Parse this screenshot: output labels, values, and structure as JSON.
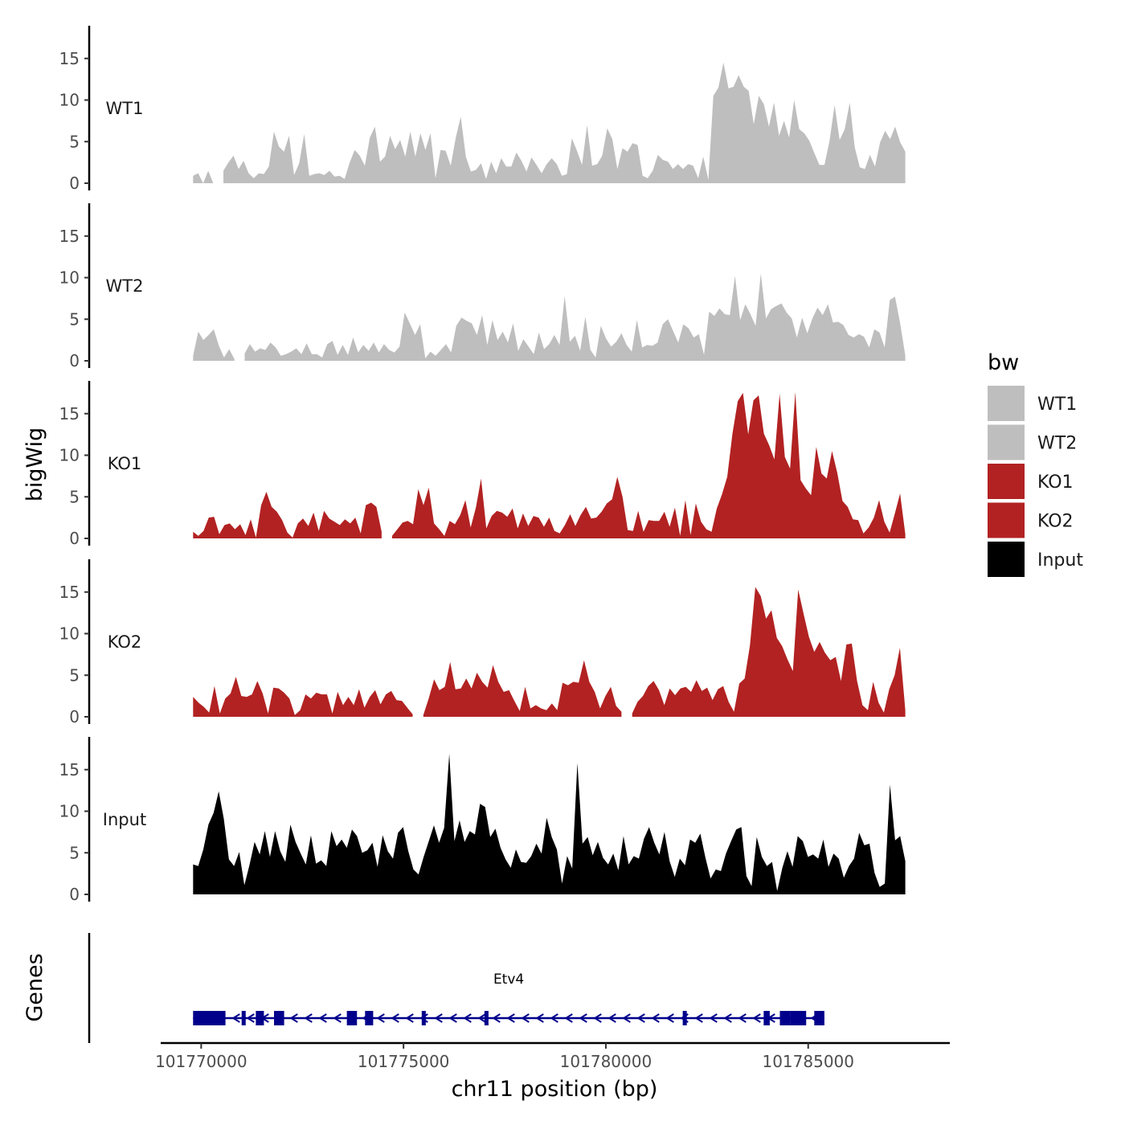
{
  "chart_data": {
    "type": "area",
    "chromosome": "chr11",
    "xlabel": "chr11 position (bp)",
    "ylabel": "bigWig",
    "genes_label": "Genes",
    "xlim": [
      101769000,
      101788500
    ],
    "ylim": [
      0,
      19
    ],
    "region": [
      101769800,
      101787400
    ],
    "x_ticks": [
      101770000,
      101775000,
      101780000,
      101785000
    ],
    "x_tick_labels": [
      "101770000",
      "101775000",
      "101780000",
      "101785000"
    ],
    "y_ticks": [
      0,
      5,
      10,
      15
    ],
    "y_tick_labels": [
      "0",
      "5",
      "10",
      "15"
    ],
    "legend": {
      "title": "bw",
      "entries": [
        {
          "name": "WT1",
          "color": "#bebebe"
        },
        {
          "name": "WT2",
          "color": "#bebebe"
        },
        {
          "name": "KO1",
          "color": "#b22222"
        },
        {
          "name": "KO2",
          "color": "#b22222"
        },
        {
          "name": "Input",
          "color": "#000000"
        }
      ]
    },
    "series": [
      {
        "name": "WT1",
        "color": "#bebebe",
        "values": [
          0.9,
          1.2,
          0,
          1.5,
          0,
          null,
          1.5,
          2.5,
          3.3,
          1.7,
          2.7,
          1.2,
          0.6,
          1.2,
          1.1,
          2.0,
          6.2,
          4.4,
          3.8,
          5.7,
          1.0,
          2.4,
          5.9,
          0.9,
          1.1,
          1.2,
          1.0,
          1.5,
          0.8,
          0.9,
          0.5,
          2.5,
          4.0,
          3.3,
          2.1,
          5.5,
          6.8,
          2.6,
          3.2,
          5.7,
          4.1,
          5.2,
          3.2,
          6.2,
          3.2,
          6.0,
          4.0,
          6.0,
          0.6,
          4.0,
          3.9,
          2.1,
          5.5,
          8.0,
          3.2,
          1.4,
          1.6,
          2.4,
          0.5,
          2.6,
          1.2,
          3.0,
          2.0,
          2.0,
          3.7,
          2.7,
          1.4,
          3.1,
          2.2,
          1.2,
          2.3,
          3.0,
          2.3,
          0.9,
          1.1,
          5.4,
          3.9,
          2.2,
          7.0,
          2.1,
          2.3,
          3.3,
          6.6,
          5.3,
          1.7,
          4.2,
          3.8,
          4.8,
          4.6,
          0.9,
          0.6,
          1.5,
          3.4,
          2.8,
          2.6,
          1.7,
          2.3,
          1.7,
          2.3,
          2.1,
          0.6,
          3.2,
          0.4,
          10.5,
          11.5,
          14.5,
          11.4,
          11.6,
          13.0,
          11.6,
          11.1,
          7.1,
          10.5,
          9.5,
          6.8,
          9.7,
          5.7,
          7.5,
          5.5,
          10.0,
          6.5,
          6.0,
          5.1,
          3.6,
          2.2,
          2.2,
          5.1,
          9.4,
          5.2,
          6.5,
          9.7,
          4.3,
          1.9,
          1.7,
          3.4,
          2.0,
          4.9,
          6.3,
          5.3,
          6.8,
          4.9,
          3.8
        ]
      },
      {
        "name": "WT2",
        "color": "#bebebe",
        "values": [
          0.6,
          3.5,
          2.5,
          3.1,
          3.8,
          1.8,
          0.4,
          1.4,
          0.2,
          null,
          0.9,
          2.0,
          1.1,
          1.5,
          1.3,
          2.2,
          1.6,
          0.6,
          0.8,
          1.1,
          1.5,
          0.8,
          2.1,
          0.8,
          0.8,
          0.4,
          2.0,
          2.4,
          0.7,
          1.9,
          0.7,
          2.8,
          1.0,
          1.9,
          1.2,
          2.2,
          1.0,
          2.0,
          1.3,
          1.0,
          1.7,
          5.8,
          4.5,
          3.1,
          4.4,
          0.3,
          1.1,
          0.6,
          1.3,
          2.0,
          1.0,
          4.2,
          5.2,
          4.8,
          4.5,
          3.1,
          5.5,
          1.9,
          4.9,
          2.5,
          3.5,
          2.2,
          4.5,
          1.2,
          2.6,
          1.7,
          0.8,
          3.4,
          1.4,
          2.0,
          3.1,
          1.9,
          7.8,
          2.3,
          3.0,
          1.2,
          5.3,
          1.3,
          0.4,
          4.2,
          2.7,
          1.7,
          2.3,
          3.3,
          1.9,
          1.1,
          4.9,
          1.6,
          1.9,
          1.8,
          2.2,
          4.4,
          5.0,
          3.6,
          2.2,
          4.4,
          3.9,
          2.8,
          3.2,
          0.7,
          5.9,
          5.4,
          6.3,
          5.6,
          5.5,
          10.2,
          4.9,
          6.8,
          5.6,
          4.2,
          10.5,
          5.1,
          6.2,
          6.6,
          6.9,
          5.8,
          5.1,
          2.8,
          5.2,
          3.3,
          5.1,
          6.4,
          5.5,
          6.8,
          4.6,
          4.7,
          4.3,
          3.1,
          2.8,
          3.2,
          2.9,
          1.6,
          3.8,
          3.4,
          1.6,
          7.3,
          7.7,
          4.5,
          0.6
        ]
      },
      {
        "name": "KO1",
        "color": "#b22222",
        "values": [
          0.8,
          0.3,
          0.9,
          2.5,
          2.6,
          0.5,
          1.6,
          1.8,
          1.1,
          1.7,
          0.4,
          2.3,
          0.1,
          4.0,
          5.6,
          3.8,
          3.2,
          2.2,
          0.7,
          0.1,
          1.8,
          2.4,
          1.5,
          3.1,
          0.9,
          3.3,
          2.4,
          2.0,
          1.6,
          2.3,
          1.8,
          2.5,
          0.6,
          4.0,
          4.3,
          3.8,
          0.8,
          null,
          0.3,
          1.1,
          1.9,
          2.1,
          1.7,
          5.9,
          4.0,
          6.1,
          1.8,
          1.1,
          0.3,
          2.1,
          1.7,
          2.8,
          4.6,
          1.3,
          3.7,
          7.2,
          1.2,
          2.7,
          3.3,
          3.1,
          2.6,
          3.6,
          1.2,
          3.0,
          1.5,
          2.7,
          2.5,
          1.4,
          2.5,
          0.9,
          0.6,
          1.6,
          2.9,
          1.5,
          2.8,
          3.8,
          2.4,
          2.5,
          3.2,
          4.2,
          4.7,
          7.4,
          5.0,
          1.0,
          0.9,
          3.3,
          0.8,
          2.2,
          2.1,
          2.1,
          3.2,
          1.4,
          3.7,
          0.3,
          4.6,
          0.4,
          4.2,
          2.0,
          1.1,
          0.8,
          3.6,
          5.3,
          7.4,
          12.6,
          16.5,
          17.5,
          12.5,
          16.6,
          17.2,
          12.6,
          11.2,
          9.5,
          17.4,
          9.8,
          8.4,
          17.6,
          7.0,
          6.0,
          5.2,
          11.0,
          7.8,
          7.2,
          10.5,
          7.9,
          4.5,
          3.8,
          2.3,
          2.2,
          0.6,
          1.3,
          2.5,
          4.6,
          2.0,
          0.7,
          3.0,
          5.4,
          0.5
        ]
      },
      {
        "name": "KO2",
        "color": "#b22222",
        "values": [
          2.4,
          1.7,
          1.2,
          0.5,
          3.7,
          0.4,
          2.2,
          2.8,
          4.8,
          2.5,
          2.4,
          2.7,
          4.3,
          2.8,
          0.4,
          3.5,
          3.4,
          2.9,
          2.2,
          0.2,
          0.8,
          2.7,
          2.2,
          2.9,
          2.7,
          2.7,
          0.4,
          3.0,
          1.4,
          2.4,
          1.4,
          3.3,
          1.1,
          2.4,
          3.2,
          1.5,
          2.7,
          3.1,
          2.0,
          1.9,
          1.1,
          0.3,
          null,
          0.2,
          2.2,
          4.5,
          3.2,
          3.6,
          6.6,
          3.3,
          3.4,
          4.6,
          3.4,
          5.3,
          4.2,
          3.5,
          6.2,
          4.2,
          3.0,
          3.2,
          1.9,
          0.7,
          3.6,
          1.0,
          1.4,
          1.0,
          0.8,
          1.6,
          0.8,
          4.1,
          3.8,
          4.2,
          4.1,
          6.8,
          4.2,
          3.0,
          1.0,
          2.5,
          3.6,
          1.3,
          0.6,
          null,
          0.4,
          1.8,
          2.5,
          3.7,
          4.3,
          3.2,
          1.4,
          3.4,
          2.6,
          3.4,
          3.6,
          3.0,
          4.4,
          3.1,
          3.5,
          2.0,
          3.3,
          3.7,
          1.8,
          0.6,
          4.0,
          4.6,
          8.6,
          15.6,
          14.5,
          11.8,
          12.8,
          9.5,
          8.5,
          6.9,
          5.5,
          15.3,
          12.4,
          9.6,
          7.8,
          9.0,
          7.7,
          6.8,
          7.2,
          4.3,
          8.7,
          8.8,
          4.3,
          1.4,
          0.8,
          4.2,
          1.7,
          0.5,
          3.3,
          5.0,
          8.3,
          0.8
        ]
      },
      {
        "name": "Input",
        "color": "#000000",
        "values": [
          3.6,
          3.4,
          5.4,
          8.4,
          9.8,
          12.4,
          9.1,
          4.2,
          3.4,
          5.1,
          1.1,
          3.5,
          6.3,
          4.8,
          7.6,
          4.5,
          7.6,
          5.2,
          3.9,
          8.4,
          6.3,
          4.9,
          3.6,
          7.1,
          3.7,
          4.1,
          3.4,
          7.6,
          5.8,
          6.6,
          5.6,
          7.8,
          7.0,
          5.0,
          5.3,
          6.2,
          3.3,
          7.1,
          5.2,
          4.3,
          7.4,
          8.1,
          5.2,
          3.0,
          2.4,
          4.5,
          6.4,
          8.3,
          6.2,
          8.0,
          16.9,
          6.4,
          8.9,
          6.3,
          7.6,
          7.2,
          10.9,
          10.5,
          6.9,
          7.9,
          5.6,
          4.2,
          3.2,
          5.4,
          3.9,
          3.8,
          4.6,
          6.1,
          4.9,
          9.2,
          6.9,
          5.4,
          1.3,
          4.6,
          3.1,
          15.8,
          6.1,
          6.9,
          4.7,
          6.3,
          4.4,
          3.6,
          4.9,
          2.9,
          7.0,
          3.6,
          4.6,
          4.3,
          6.7,
          8.1,
          6.2,
          4.8,
          7.5,
          4.0,
          2.1,
          4.3,
          3.5,
          6.6,
          6.2,
          7.3,
          4.4,
          1.9,
          3.0,
          2.8,
          4.9,
          6.4,
          7.8,
          8.1,
          2.2,
          1.0,
          6.9,
          4.5,
          3.4,
          3.9,
          0.4,
          3.2,
          5.2,
          3.3,
          7.0,
          6.4,
          4.5,
          4.8,
          4.3,
          6.6,
          3.3,
          4.9,
          4.3,
          2.0,
          3.4,
          4.3,
          7.4,
          5.9,
          6.1,
          2.6,
          0.9,
          1.3,
          13.2,
          6.5,
          7.0,
          4.0
        ]
      }
    ],
    "genes": [
      {
        "name": "Etv4",
        "start": 101769800,
        "end": 101785400,
        "strand": "-",
        "color": "#00008b",
        "exons": [
          [
            101769800,
            101770600
          ],
          [
            101771000,
            101771100
          ],
          [
            101771350,
            101771550
          ],
          [
            101771800,
            101772050
          ],
          [
            101773600,
            101773850
          ],
          [
            101774050,
            101774250
          ],
          [
            101775450,
            101775550
          ],
          [
            101777000,
            101777100
          ],
          [
            101781900,
            101782000
          ],
          [
            101783900,
            101784050
          ],
          [
            101784300,
            101784550
          ],
          [
            101784550,
            101784950
          ],
          [
            101785150,
            101785400
          ]
        ]
      }
    ]
  }
}
